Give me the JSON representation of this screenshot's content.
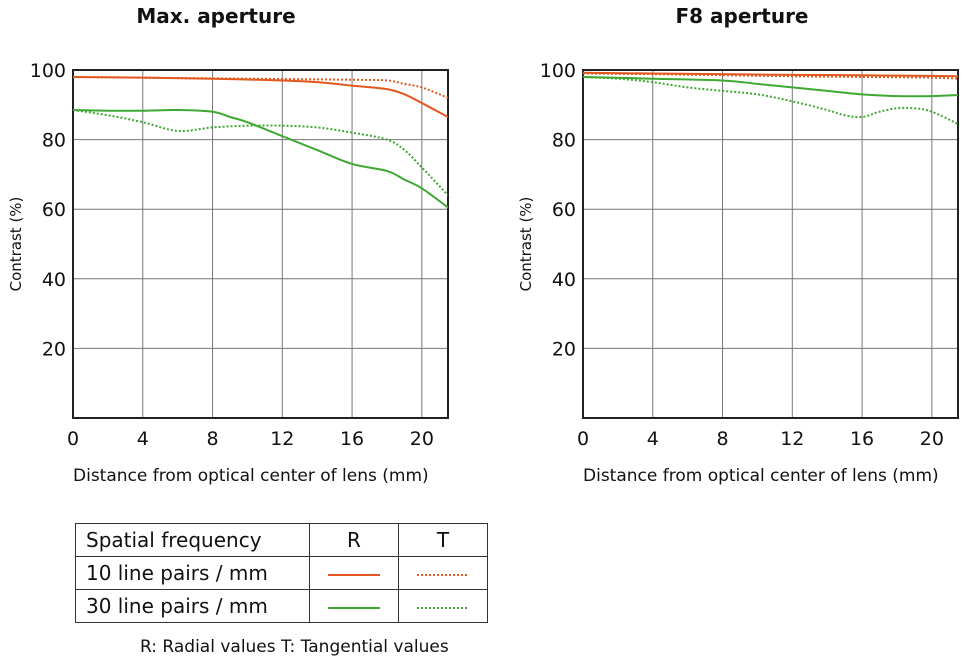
{
  "colors": {
    "series_10": "#e3581f",
    "series_30": "#3ea832",
    "grid": "#777777",
    "axis": "#222222"
  },
  "chart_data": [
    {
      "type": "line",
      "title": "Max. aperture",
      "xlabel": "Distance from optical center of lens (mm)",
      "ylabel": "Contrast (%)",
      "xlim": [
        0,
        21.5
      ],
      "ylim": [
        0,
        100
      ],
      "xticks": [
        0,
        4,
        8,
        12,
        16,
        20
      ],
      "yticks": [
        20,
        40,
        60,
        80,
        100
      ],
      "grid": true,
      "series": [
        {
          "name": "10 line pairs / mm R",
          "style": "solid",
          "color_key": "series_10",
          "x": [
            0,
            4,
            8,
            12,
            14,
            16,
            18,
            19,
            20,
            21.5
          ],
          "y": [
            98,
            97.8,
            97.5,
            97,
            96.5,
            95.5,
            94.5,
            93,
            90.5,
            86.5
          ]
        },
        {
          "name": "10 line pairs / mm T",
          "style": "dotted",
          "color_key": "series_10",
          "x": [
            0,
            4,
            8,
            12,
            16,
            18,
            19,
            20,
            21.5
          ],
          "y": [
            98,
            97.8,
            97.6,
            97.4,
            97.2,
            97,
            96,
            95,
            92
          ]
        },
        {
          "name": "30 line pairs / mm R",
          "style": "solid",
          "color_key": "series_30",
          "x": [
            0,
            2,
            4,
            6,
            8,
            9,
            10,
            12,
            14,
            16,
            18,
            19,
            20,
            21.5
          ],
          "y": [
            88.5,
            88.3,
            88.3,
            88.5,
            88,
            86.5,
            85,
            81,
            77,
            73,
            71,
            68.5,
            66,
            60.5
          ]
        },
        {
          "name": "30 line pairs / mm T",
          "style": "dotted",
          "color_key": "series_30",
          "x": [
            0,
            2,
            4,
            6,
            8,
            10,
            12,
            14,
            16,
            18,
            19,
            20,
            21.5
          ],
          "y": [
            88.5,
            87,
            85,
            82.5,
            83.5,
            84,
            84,
            83.5,
            82,
            80,
            77,
            72,
            64
          ]
        }
      ]
    },
    {
      "type": "line",
      "title": "F8 aperture",
      "xlabel": "Distance from optical center of lens (mm)",
      "ylabel": "Contrast (%)",
      "xlim": [
        0,
        21.5
      ],
      "ylim": [
        0,
        100
      ],
      "xticks": [
        0,
        4,
        8,
        12,
        16,
        20
      ],
      "yticks": [
        20,
        40,
        60,
        80,
        100
      ],
      "grid": true,
      "series": [
        {
          "name": "10 line pairs / mm R",
          "style": "solid",
          "color_key": "series_10",
          "x": [
            0,
            4,
            8,
            12,
            16,
            20,
            21.5
          ],
          "y": [
            99.2,
            99,
            98.8,
            98.6,
            98.5,
            98.3,
            98.2
          ]
        },
        {
          "name": "10 line pairs / mm T",
          "style": "dotted",
          "color_key": "series_10",
          "x": [
            0,
            4,
            8,
            12,
            16,
            20,
            21.5
          ],
          "y": [
            99,
            98.8,
            98.5,
            98.2,
            98,
            97.8,
            97.5
          ]
        },
        {
          "name": "30 line pairs / mm R",
          "style": "solid",
          "color_key": "series_30",
          "x": [
            0,
            4,
            8,
            10,
            12,
            14,
            16,
            18,
            20,
            21.5
          ],
          "y": [
            98,
            97.5,
            97,
            96,
            95,
            94,
            93,
            92.5,
            92.5,
            92.8
          ]
        },
        {
          "name": "30 line pairs / mm T",
          "style": "dotted",
          "color_key": "series_30",
          "x": [
            0,
            2,
            4,
            6,
            8,
            10,
            12,
            14,
            15,
            16,
            17,
            18,
            19,
            20,
            21.5
          ],
          "y": [
            98,
            97.5,
            96.5,
            95,
            94,
            93,
            91,
            88.5,
            87,
            86.5,
            88,
            89,
            89,
            88,
            84.5
          ]
        }
      ]
    }
  ],
  "legend": {
    "header": {
      "label": "Spatial frequency",
      "r": "R",
      "t": "T"
    },
    "rows": [
      {
        "label": "10 line pairs / mm"
      },
      {
        "label": "30 line pairs / mm"
      }
    ],
    "note": "R: Radial values  T: Tangential values"
  }
}
